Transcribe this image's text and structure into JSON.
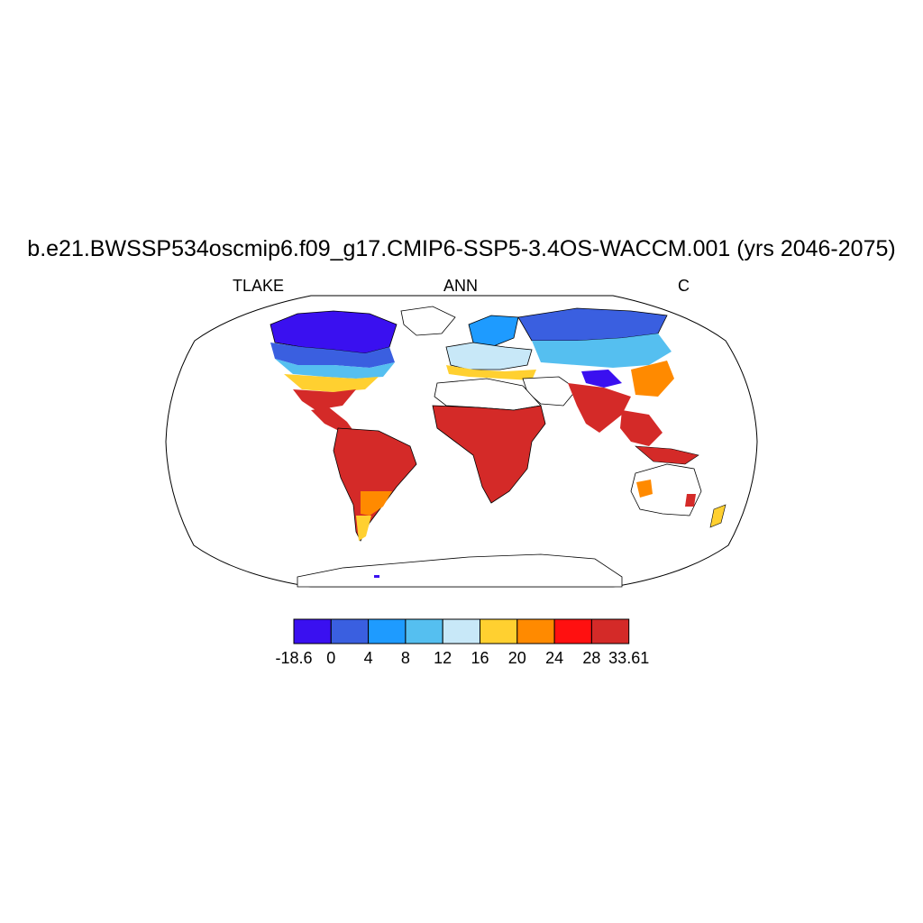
{
  "title": "b.e21.BWSSP534oscmip6.f09_g17.CMIP6-SSP5-3.4OS-WACCM.001 (yrs 2046-2075)",
  "left_label": "TLAKE",
  "center_label": "ANN",
  "right_label": "C",
  "colorbar": {
    "colors": [
      "#3a10f0",
      "#3a5fe0",
      "#1e9bff",
      "#55bff0",
      "#c8e8f8",
      "#ffd030",
      "#ff8a00",
      "#ff1010",
      "#d42a28"
    ],
    "labels": [
      "-18.6",
      "0",
      "4",
      "8",
      "12",
      "16",
      "20",
      "24",
      "28",
      "33.61"
    ]
  },
  "map": {
    "projection": "Robinson",
    "fill_color": "#ffffff",
    "outline_color": "#000000"
  }
}
